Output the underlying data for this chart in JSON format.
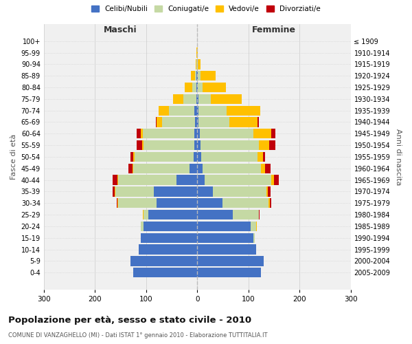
{
  "age_groups_bottom_to_top": [
    "0-4",
    "5-9",
    "10-14",
    "15-19",
    "20-24",
    "25-29",
    "30-34",
    "35-39",
    "40-44",
    "45-49",
    "50-54",
    "55-59",
    "60-64",
    "65-69",
    "70-74",
    "75-79",
    "80-84",
    "85-89",
    "90-94",
    "95-99",
    "100+"
  ],
  "birth_years_bottom_to_top": [
    "2005-2009",
    "2000-2004",
    "1995-1999",
    "1990-1994",
    "1985-1989",
    "1980-1984",
    "1975-1979",
    "1970-1974",
    "1965-1969",
    "1960-1964",
    "1955-1959",
    "1950-1954",
    "1945-1949",
    "1940-1944",
    "1935-1939",
    "1930-1934",
    "1925-1929",
    "1920-1924",
    "1915-1919",
    "1910-1914",
    "≤ 1909"
  ],
  "maschi": {
    "celibi": [
      125,
      130,
      115,
      110,
      105,
      95,
      80,
      85,
      40,
      15,
      7,
      5,
      6,
      4,
      5,
      2,
      1,
      1,
      0,
      0,
      0
    ],
    "coniugati": [
      0,
      0,
      0,
      0,
      5,
      10,
      75,
      75,
      115,
      110,
      115,
      100,
      100,
      65,
      50,
      25,
      8,
      3,
      1,
      0,
      0
    ],
    "vedovi": [
      0,
      0,
      0,
      0,
      0,
      1,
      1,
      1,
      1,
      2,
      3,
      3,
      5,
      10,
      20,
      20,
      15,
      8,
      2,
      1,
      0
    ],
    "divorziati": [
      0,
      0,
      0,
      0,
      0,
      1,
      2,
      5,
      10,
      8,
      5,
      10,
      8,
      2,
      1,
      0,
      0,
      0,
      0,
      0,
      0
    ]
  },
  "femmine": {
    "nubili": [
      125,
      130,
      115,
      110,
      105,
      70,
      50,
      30,
      15,
      10,
      8,
      6,
      5,
      3,
      3,
      2,
      1,
      1,
      0,
      0,
      0
    ],
    "coniugate": [
      0,
      0,
      0,
      2,
      10,
      50,
      90,
      105,
      130,
      115,
      110,
      115,
      105,
      60,
      55,
      25,
      10,
      5,
      1,
      0,
      0
    ],
    "vedove": [
      0,
      0,
      0,
      0,
      1,
      1,
      2,
      3,
      5,
      8,
      10,
      20,
      35,
      55,
      65,
      60,
      45,
      30,
      5,
      1,
      0
    ],
    "divorziate": [
      0,
      0,
      0,
      0,
      0,
      1,
      3,
      5,
      10,
      10,
      5,
      12,
      8,
      2,
      0,
      0,
      0,
      0,
      0,
      0,
      0
    ]
  },
  "colors": {
    "celibi": "#4472c4",
    "coniugati": "#c5d9a4",
    "vedovi": "#ffc000",
    "divorziati": "#c0000b"
  },
  "xlim": 300,
  "title": "Popolazione per età, sesso e stato civile - 2010",
  "subtitle": "COMUNE DI VANZAGHELLO (MI) - Dati ISTAT 1° gennaio 2010 - Elaborazione TUTTITALIA.IT",
  "ylabel_left": "Fasce di età",
  "ylabel_right": "Anni di nascita",
  "xlabel_left": "Maschi",
  "xlabel_right": "Femmine",
  "legend_labels": [
    "Celibi/Nubili",
    "Coniugati/e",
    "Vedovi/e",
    "Divorziati/e"
  ],
  "bg_color": "#f0f0f0",
  "grid_color": "#cccccc"
}
